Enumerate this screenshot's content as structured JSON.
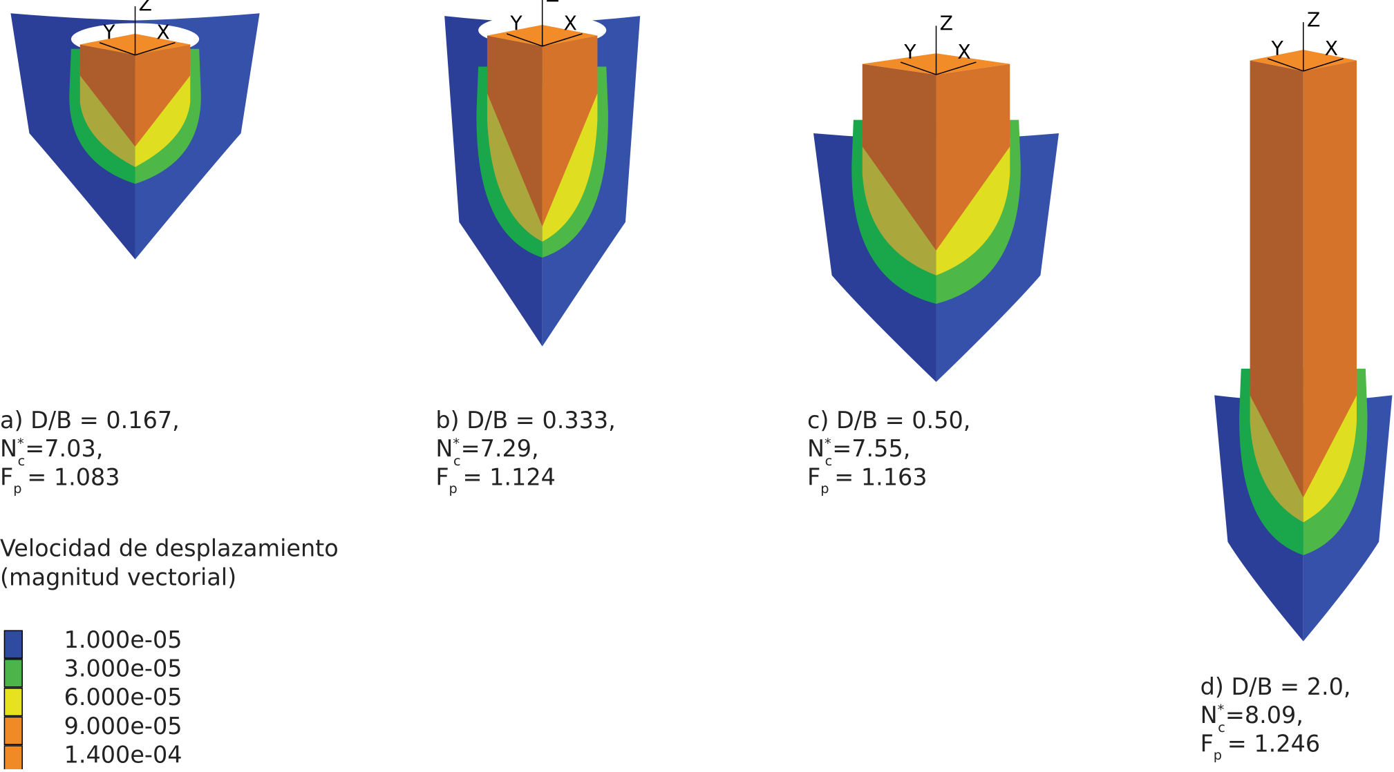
{
  "panels": [
    {
      "caption": {
        "line1": "a) D/B = 0.167,",
        "nc_symbol": "N",
        "nc_sup": "*",
        "nc_sub": "c",
        "nc_value": "=7.03,",
        "fp_symbol": "F",
        "fp_sub": "p",
        "fp_value": "= 1.083"
      },
      "axes": {
        "z": "Z",
        "y": "Y",
        "x": "X"
      }
    },
    {
      "caption": {
        "line1": "b) D/B = 0.333,",
        "nc_symbol": "N",
        "nc_sup": "*",
        "nc_sub": "c",
        "nc_value": "=7.29,",
        "fp_symbol": "F",
        "fp_sub": "p",
        "fp_value": "= 1.124"
      },
      "axes": {
        "z": "Z",
        "y": "Y",
        "x": "X"
      }
    },
    {
      "caption": {
        "line1": "c) D/B = 0.50,",
        "nc_symbol": "N",
        "nc_sup": "*",
        "nc_sub": "c",
        "nc_value": "=7.55,",
        "fp_symbol": "F",
        "fp_sub": "p",
        "fp_value": "= 1.163"
      },
      "axes": {
        "z": "Z",
        "y": "Y",
        "x": "X"
      }
    },
    {
      "caption": {
        "line1": "d) D/B = 2.0,",
        "nc_symbol": "N",
        "nc_sup": "*",
        "nc_sub": "c",
        "nc_value": "=8.09,",
        "fp_symbol": "F",
        "fp_sub": "p",
        "fp_value": "= 1.246"
      },
      "axes": {
        "z": "Z",
        "y": "Y",
        "x": "X"
      }
    }
  ],
  "legend": {
    "title_lines": [
      "Velocidad de desplazamiento",
      "(magnitud vectorial)"
    ],
    "items": [
      {
        "label": "1.000e-05",
        "color": "#2f4b9f"
      },
      {
        "label": "3.000e-05",
        "color": "#4cb54a"
      },
      {
        "label": "6.000e-05",
        "color": "#e6e31e"
      },
      {
        "label": "9.000e-05",
        "color": "#f08a24"
      },
      {
        "label": "1.400e-04",
        "color": "#f08a24"
      }
    ]
  }
}
